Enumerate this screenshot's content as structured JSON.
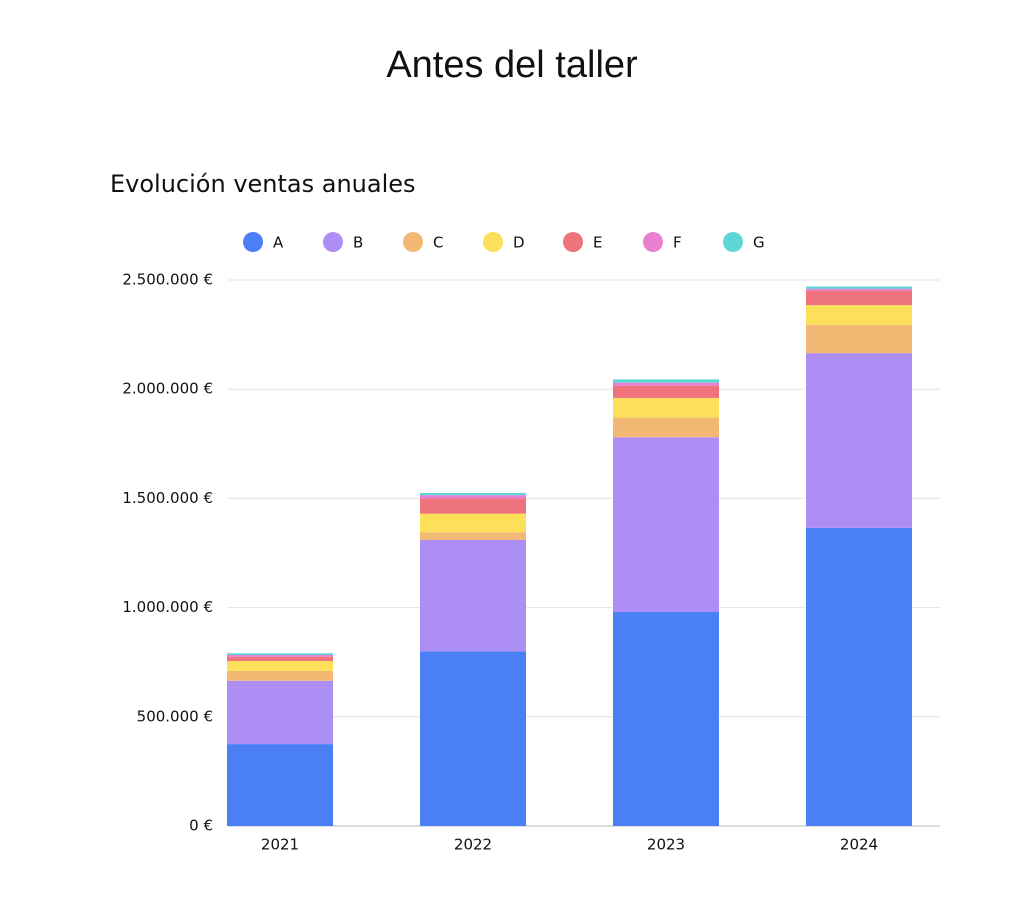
{
  "page_title": "Antes del taller",
  "chart_data": {
    "type": "stacked-bar",
    "title": "Evolución ventas anuales",
    "categories": [
      "2021",
      "2022",
      "2023",
      "2024"
    ],
    "series": [
      {
        "name": "A",
        "color": "#4a7ff5",
        "values": [
          375000,
          800000,
          980000,
          1365000
        ]
      },
      {
        "name": "B",
        "color": "#ad8ef4",
        "values": [
          290000,
          510000,
          800000,
          800000
        ]
      },
      {
        "name": "C",
        "color": "#f3b873",
        "values": [
          45000,
          35000,
          90000,
          130000
        ]
      },
      {
        "name": "D",
        "color": "#fde05a",
        "values": [
          45000,
          85000,
          90000,
          90000
        ]
      },
      {
        "name": "E",
        "color": "#ef737c",
        "values": [
          20000,
          70000,
          55000,
          65000
        ]
      },
      {
        "name": "F",
        "color": "#e87fcf",
        "values": [
          8000,
          15000,
          15000,
          10000
        ]
      },
      {
        "name": "G",
        "color": "#5ed6d6",
        "values": [
          8000,
          10000,
          15000,
          10000
        ]
      }
    ],
    "ylim": [
      0,
      2500000
    ],
    "yticks": [
      {
        "value": 0,
        "label": "0 €"
      },
      {
        "value": 500000,
        "label": "500.000 €"
      },
      {
        "value": 1000000,
        "label": "1.000.000 €"
      },
      {
        "value": 1500000,
        "label": "1.500.000 €"
      },
      {
        "value": 2000000,
        "label": "2.000.000 €"
      },
      {
        "value": 2500000,
        "label": "2.500.000 €"
      }
    ],
    "grid": true,
    "legend": "top"
  }
}
